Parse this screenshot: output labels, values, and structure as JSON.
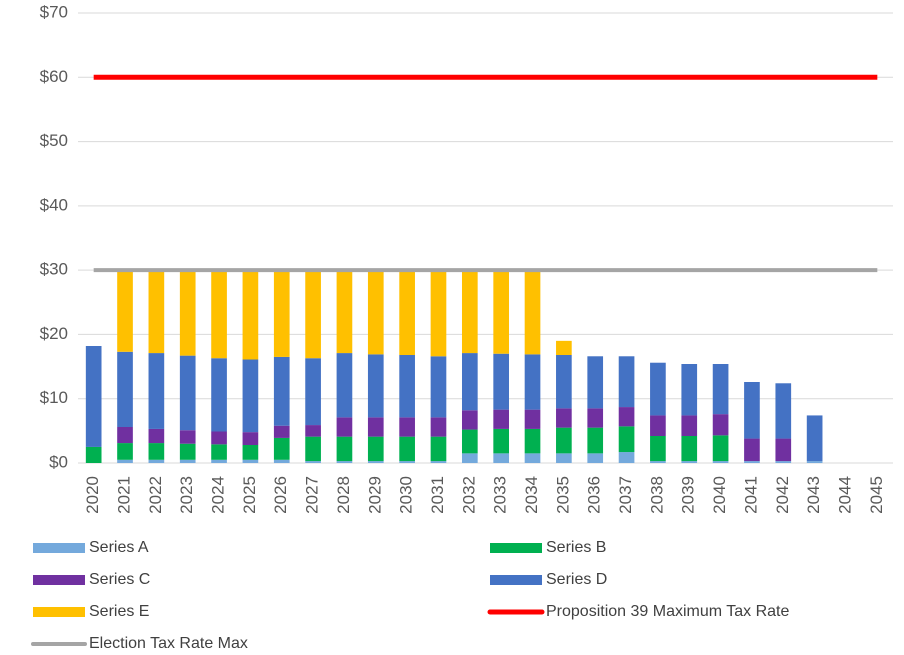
{
  "chart_data": {
    "type": "bar",
    "stacked": true,
    "categories": [
      "2020",
      "2021",
      "2022",
      "2023",
      "2024",
      "2025",
      "2026",
      "2027",
      "2028",
      "2029",
      "2030",
      "2031",
      "2032",
      "2033",
      "2034",
      "2035",
      "2036",
      "2037",
      "2038",
      "2039",
      "2040",
      "2041",
      "2042",
      "2043",
      "2044",
      "2045"
    ],
    "series": [
      {
        "name": "Series A",
        "color": "#74a9dc",
        "values": [
          0,
          0.5,
          0.5,
          0.5,
          0.5,
          0.5,
          0.5,
          0.3,
          0.3,
          0.3,
          0.3,
          0.3,
          1.5,
          1.5,
          1.5,
          1.5,
          1.5,
          1.7,
          0.3,
          0.3,
          0.3,
          0.3,
          0.3,
          0.3,
          0,
          0
        ]
      },
      {
        "name": "Series B",
        "color": "#00b050",
        "values": [
          2.5,
          2.6,
          2.6,
          2.5,
          2.4,
          2.3,
          3.4,
          3.8,
          3.8,
          3.8,
          3.8,
          3.8,
          3.7,
          3.8,
          3.8,
          4.0,
          4.0,
          4.0,
          3.9,
          3.9,
          4.0,
          0,
          0,
          0,
          0,
          0
        ]
      },
      {
        "name": "Series C",
        "color": "#7030a0",
        "values": [
          0,
          2.5,
          2.2,
          2.1,
          2.0,
          2.0,
          1.9,
          1.8,
          3.0,
          3.0,
          3.0,
          3.0,
          3.0,
          3.0,
          3.0,
          3.0,
          3.0,
          3.0,
          3.2,
          3.2,
          3.3,
          3.5,
          3.5,
          0,
          0,
          0
        ]
      },
      {
        "name": "Series D",
        "color": "#4472c4",
        "values": [
          15.7,
          11.7,
          11.8,
          11.6,
          11.4,
          11.3,
          10.7,
          10.4,
          10.0,
          9.8,
          9.7,
          9.5,
          8.9,
          8.7,
          8.6,
          8.3,
          8.1,
          7.9,
          8.2,
          8.0,
          7.8,
          8.8,
          8.6,
          7.1,
          0,
          0
        ]
      },
      {
        "name": "Series E",
        "color": "#ffc000",
        "values": [
          0,
          12.7,
          12.9,
          13.3,
          13.7,
          13.9,
          13.4,
          13.7,
          12.9,
          13.1,
          13.2,
          13.4,
          12.9,
          13.0,
          13.1,
          2.2,
          0,
          0,
          0,
          0,
          0,
          0,
          0,
          0,
          0,
          0
        ]
      },
      {
        "name": "Proposition 39 Maximum Tax Rate",
        "type": "line",
        "color": "#ff0000",
        "values": [
          60,
          60,
          60,
          60,
          60,
          60,
          60,
          60,
          60,
          60,
          60,
          60,
          60,
          60,
          60,
          60,
          60,
          60,
          60,
          60,
          60,
          60,
          60,
          60,
          60,
          60
        ]
      },
      {
        "name": "Election Tax Rate Max",
        "type": "line",
        "color": "#a5a5a5",
        "values": [
          30,
          30,
          30,
          30,
          30,
          30,
          30,
          30,
          30,
          30,
          30,
          30,
          30,
          30,
          30,
          30,
          30,
          30,
          30,
          30,
          30,
          30,
          30,
          30,
          30,
          30
        ]
      }
    ],
    "ylim": [
      0,
      70
    ],
    "yticks": [
      {
        "value": 0,
        "label": "$0"
      },
      {
        "value": 10,
        "label": "$10"
      },
      {
        "value": 20,
        "label": "$20"
      },
      {
        "value": 30,
        "label": "$30"
      },
      {
        "value": 40,
        "label": "$40"
      },
      {
        "value": 50,
        "label": "$50"
      },
      {
        "value": 60,
        "label": "$60"
      },
      {
        "value": 70,
        "label": "$70"
      }
    ],
    "grid": true
  }
}
